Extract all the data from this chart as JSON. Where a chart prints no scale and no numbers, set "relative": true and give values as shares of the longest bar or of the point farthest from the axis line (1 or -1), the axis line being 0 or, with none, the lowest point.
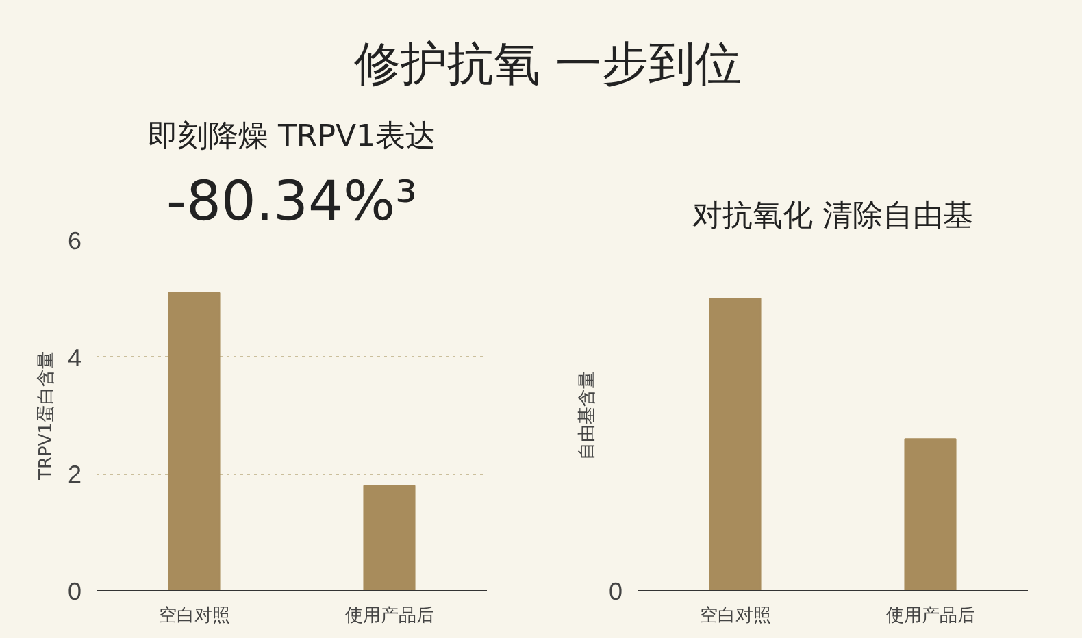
{
  "chart_data": [
    {
      "type": "bar",
      "title": "修护抗氧 一步到位",
      "subtitle": "即刻降燥 TRPV1表达",
      "annotations": [
        "-80.34%³"
      ],
      "ylabel": "TRPV1蛋白含量",
      "categories": [
        "空白对照",
        "使用产品后"
      ],
      "values": [
        5.1,
        1.8
      ],
      "color": "#a88c5c",
      "ylim": [
        0,
        6
      ],
      "yticks": [
        0,
        2,
        4,
        6
      ],
      "grid": "y"
    },
    {
      "type": "bar",
      "subtitle": "对抗氧化 清除自由基",
      "ylabel": "自由基含量",
      "annotations": [
        "0"
      ],
      "categories": [
        "空白对照",
        "使用产品后"
      ],
      "values": [
        1,
        0.52
      ],
      "color": "#a88c5c",
      "relative": true
    }
  ]
}
